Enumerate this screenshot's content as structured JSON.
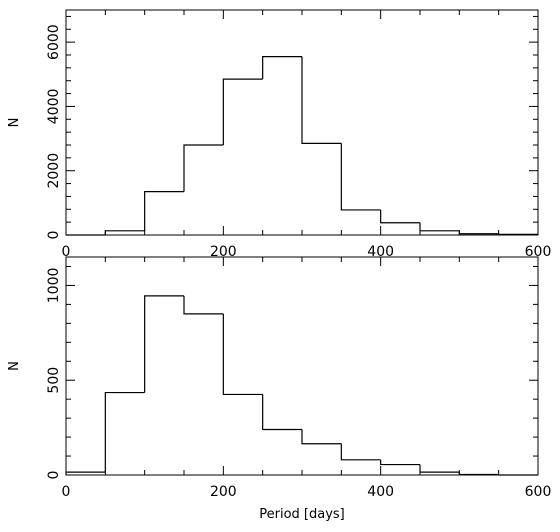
{
  "chart_data": [
    {
      "type": "bar",
      "histogram": true,
      "bin_width": 50,
      "bin_edges": [
        0,
        50,
        100,
        150,
        200,
        250,
        300,
        350,
        400,
        450,
        500,
        550,
        600
      ],
      "values": [
        0,
        130,
        1350,
        2800,
        4850,
        5550,
        2850,
        780,
        380,
        130,
        40,
        20
      ],
      "xlim": [
        0,
        600
      ],
      "ylim": [
        0,
        7000
      ],
      "xticks": [
        0,
        200,
        400,
        600
      ],
      "yticks": [
        0,
        2000,
        4000,
        6000
      ],
      "xlabel": "",
      "ylabel": "N",
      "grid": false
    },
    {
      "type": "bar",
      "histogram": true,
      "bin_width": 50,
      "bin_edges": [
        0,
        50,
        100,
        150,
        200,
        250,
        300,
        350,
        400,
        450,
        500,
        550,
        600
      ],
      "values": [
        15,
        435,
        945,
        850,
        425,
        240,
        165,
        80,
        55,
        15,
        3,
        0
      ],
      "xlim": [
        0,
        600
      ],
      "ylim": [
        0,
        1150
      ],
      "xticks": [
        0,
        200,
        400,
        600
      ],
      "yticks": [
        0,
        500,
        1000
      ],
      "xlabel": "Period [days]",
      "ylabel": "N",
      "grid": false
    }
  ]
}
